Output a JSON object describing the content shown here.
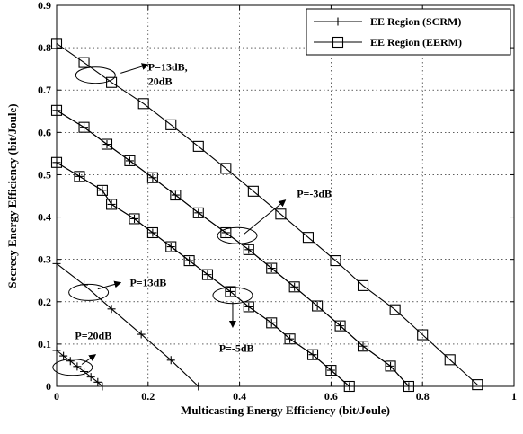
{
  "chart_data": {
    "type": "line",
    "xlabel": "Multicasting Energy Efficiency (bit/Joule)",
    "ylabel": "Secrecy Energy Efficiency (bit/Joule)",
    "xlim": [
      0,
      1
    ],
    "ylim": [
      0,
      0.9
    ],
    "xticks": [
      0,
      0.2,
      0.4,
      0.6,
      0.8,
      1
    ],
    "xtick_labels": [
      "0",
      "0.2",
      "0.4",
      "0.6",
      "0.8",
      "1"
    ],
    "yticks": [
      0,
      0.1,
      0.2,
      0.3,
      0.4,
      0.5,
      0.6,
      0.7,
      0.8,
      0.9
    ],
    "ytick_labels": [
      "0",
      "0.1",
      "0.2",
      "0.3",
      "0.4",
      "0.5",
      "0.6",
      "0.7",
      "0.8",
      "0.9"
    ],
    "grid": true,
    "legend_position": "top-right",
    "legend": [
      {
        "label": "EE Region (SCRM)",
        "marker": "plus"
      },
      {
        "label": "EE Region (EERM)",
        "marker": "square"
      }
    ],
    "series": [
      {
        "name": "EE Region (SCRM)",
        "legend_index": 0,
        "marker": "plus",
        "points": [
          [
            0,
            0.29
          ],
          [
            0.06,
            0.24
          ],
          [
            0.12,
            0.183
          ],
          [
            0.185,
            0.123
          ],
          [
            0.25,
            0.062
          ],
          [
            0.31,
            0
          ]
        ]
      },
      {
        "name": "EE Region (SCRM)",
        "legend_index": 0,
        "marker": "plus",
        "points": [
          [
            0,
            0.085
          ],
          [
            0.015,
            0.072
          ],
          [
            0.03,
            0.06
          ],
          [
            0.045,
            0.047
          ],
          [
            0.06,
            0.035
          ],
          [
            0.075,
            0.022
          ],
          [
            0.09,
            0.01
          ],
          [
            0.1,
            0
          ]
        ]
      },
      {
        "name": "EE Region (SCRM)",
        "legend_index": 0,
        "marker": "plus",
        "points": [
          [
            0,
            0.529
          ],
          [
            0.05,
            0.496
          ],
          [
            0.1,
            0.463
          ],
          [
            0.12,
            0.43
          ],
          [
            0.17,
            0.396
          ],
          [
            0.21,
            0.363
          ],
          [
            0.25,
            0.33
          ],
          [
            0.29,
            0.297
          ],
          [
            0.33,
            0.264
          ],
          [
            0.38,
            0.224
          ],
          [
            0.42,
            0.188
          ],
          [
            0.47,
            0.15
          ],
          [
            0.51,
            0.112
          ],
          [
            0.56,
            0.075
          ],
          [
            0.6,
            0.038
          ],
          [
            0.64,
            0
          ]
        ]
      },
      {
        "name": "EE Region (SCRM)",
        "legend_index": 0,
        "marker": "plus",
        "points": [
          [
            0,
            0.652
          ],
          [
            0.06,
            0.612
          ],
          [
            0.11,
            0.572
          ],
          [
            0.16,
            0.533
          ],
          [
            0.21,
            0.493
          ],
          [
            0.26,
            0.452
          ],
          [
            0.31,
            0.41
          ],
          [
            0.37,
            0.363
          ],
          [
            0.42,
            0.323
          ],
          [
            0.47,
            0.279
          ],
          [
            0.52,
            0.235
          ],
          [
            0.57,
            0.19
          ],
          [
            0.62,
            0.143
          ],
          [
            0.67,
            0.095
          ],
          [
            0.73,
            0.048
          ],
          [
            0.77,
            0
          ]
        ]
      },
      {
        "name": "EE Region (EERM)",
        "legend_index": 1,
        "marker": "square",
        "points": [
          [
            0,
            0.81
          ],
          [
            0.06,
            0.765
          ],
          [
            0.12,
            0.718
          ],
          [
            0.19,
            0.668
          ],
          [
            0.25,
            0.618
          ],
          [
            0.31,
            0.567
          ],
          [
            0.37,
            0.515
          ],
          [
            0.43,
            0.461
          ],
          [
            0.49,
            0.407
          ],
          [
            0.55,
            0.352
          ],
          [
            0.61,
            0.297
          ],
          [
            0.67,
            0.238
          ],
          [
            0.74,
            0.181
          ],
          [
            0.8,
            0.122
          ],
          [
            0.86,
            0.063
          ],
          [
            0.92,
            0.004
          ]
        ]
      },
      {
        "name": "EE Region (EERM)",
        "legend_index": 1,
        "marker": "square",
        "points": [
          [
            0,
            0.652
          ],
          [
            0.06,
            0.612
          ],
          [
            0.11,
            0.572
          ],
          [
            0.16,
            0.533
          ],
          [
            0.21,
            0.493
          ],
          [
            0.26,
            0.452
          ],
          [
            0.31,
            0.41
          ],
          [
            0.37,
            0.363
          ],
          [
            0.42,
            0.323
          ],
          [
            0.47,
            0.279
          ],
          [
            0.52,
            0.235
          ],
          [
            0.57,
            0.19
          ],
          [
            0.62,
            0.143
          ],
          [
            0.67,
            0.095
          ],
          [
            0.73,
            0.048
          ],
          [
            0.77,
            0
          ]
        ]
      },
      {
        "name": "EE Region (EERM)",
        "legend_index": 1,
        "marker": "square",
        "points": [
          [
            0,
            0.529
          ],
          [
            0.05,
            0.496
          ],
          [
            0.1,
            0.463
          ],
          [
            0.12,
            0.43
          ],
          [
            0.17,
            0.396
          ],
          [
            0.21,
            0.363
          ],
          [
            0.25,
            0.33
          ],
          [
            0.29,
            0.297
          ],
          [
            0.33,
            0.264
          ],
          [
            0.38,
            0.224
          ],
          [
            0.42,
            0.188
          ],
          [
            0.47,
            0.15
          ],
          [
            0.51,
            0.112
          ],
          [
            0.56,
            0.075
          ],
          [
            0.6,
            0.038
          ],
          [
            0.64,
            0
          ]
        ]
      }
    ],
    "annotations": [
      {
        "text": "P=13dB,",
        "text2": "20dB",
        "at": [
          0.175,
          0.755
        ],
        "text_at": [
          0.2,
          0.755
        ],
        "ellipse": [
          0.085,
          0.735
        ],
        "arrow_from": [
          0.14,
          0.74
        ],
        "arrow_to": [
          0.2,
          0.76
        ]
      },
      {
        "text": "P=-3dB",
        "text2": "",
        "at": [
          0.53,
          0.455
        ],
        "text_at": [
          0.525,
          0.455
        ],
        "ellipse": [
          0.395,
          0.356
        ],
        "arrow_from": [
          0.41,
          0.36
        ],
        "arrow_to": [
          0.5,
          0.44
        ]
      },
      {
        "text": "P=13dB",
        "text2": "",
        "at": [
          0.16,
          0.245
        ],
        "text_at": [
          0.16,
          0.245
        ],
        "ellipse": [
          0.07,
          0.222
        ],
        "arrow_from": [
          0.09,
          0.23
        ],
        "arrow_to": [
          0.14,
          0.245
        ]
      },
      {
        "text": "P=-5dB",
        "text2": "",
        "at": [
          0.355,
          0.09
        ],
        "text_at": [
          0.355,
          0.09
        ],
        "ellipse": [
          0.385,
          0.215
        ],
        "arrow_from": [
          0.385,
          0.2
        ],
        "arrow_to": [
          0.385,
          0.14
        ]
      },
      {
        "text": "P=20dB",
        "text2": "",
        "at": [
          0.04,
          0.12
        ],
        "text_at": [
          0.04,
          0.12
        ],
        "ellipse": [
          0.035,
          0.045
        ],
        "arrow_from": [
          0.055,
          0.052
        ],
        "arrow_to": [
          0.085,
          0.075
        ]
      }
    ]
  }
}
